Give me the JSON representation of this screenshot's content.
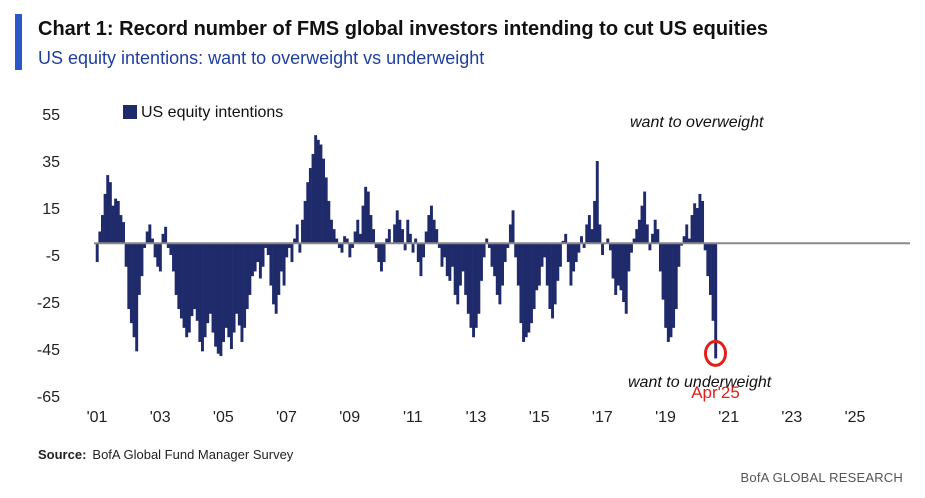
{
  "header": {
    "title": "Chart 1: Record number of FMS global investors intending to cut US equities",
    "subtitle": "US equity intentions: want to overweight vs underweight"
  },
  "footer": {
    "source_label": "Source:",
    "source_text": "BofA Global Fund Manager Survey",
    "brand": "BofA GLOBAL RESEARCH"
  },
  "colors": {
    "bars": "#1f2a6b",
    "accent": "#2a58c8",
    "highlight": "#e0201b",
    "zero_line": "#888888"
  },
  "chart_data": {
    "type": "bar",
    "title": "Chart 1: Record number of FMS global investors intending to cut US equities",
    "subtitle": "US equity intentions: want to overweight vs underweight",
    "ylim": [
      -65,
      55
    ],
    "yticks": [
      55,
      35,
      15,
      -5,
      -25,
      -45,
      -65
    ],
    "xlim": [
      2001,
      2027
    ],
    "xticks": [
      {
        "value": 2001,
        "label": "'01"
      },
      {
        "value": 2003,
        "label": "'03"
      },
      {
        "value": 2005,
        "label": "'05"
      },
      {
        "value": 2007,
        "label": "'07"
      },
      {
        "value": 2009,
        "label": "'09"
      },
      {
        "value": 2011,
        "label": "'11"
      },
      {
        "value": 2013,
        "label": "'13"
      },
      {
        "value": 2015,
        "label": "'15"
      },
      {
        "value": 2017,
        "label": "'17"
      },
      {
        "value": 2019,
        "label": "'19"
      },
      {
        "value": 2021,
        "label": "'21"
      },
      {
        "value": 2023,
        "label": "'23"
      },
      {
        "value": 2025,
        "label": "'25"
      }
    ],
    "legend": {
      "label": "US equity intentions",
      "position": "top-left"
    },
    "annotations": {
      "overweight": "want to overweight",
      "underweight": "want to underweight",
      "highlight_label": "Apr'25",
      "highlight_value": -49
    },
    "series": [
      {
        "x_start": "Jan 2001",
        "frequency": "monthly",
        "values": [
          -8,
          5,
          12,
          21,
          29,
          26,
          16,
          19,
          18,
          12,
          9,
          -10,
          -28,
          -34,
          -40,
          -46,
          -22,
          -14,
          -2,
          5,
          8,
          2,
          -6,
          -10,
          -12,
          4,
          7,
          -2,
          -5,
          -12,
          -22,
          -28,
          -32,
          -36,
          -40,
          -38,
          -31,
          -28,
          -33,
          -42,
          -46,
          -40,
          -34,
          -30,
          -38,
          -44,
          -47,
          -48,
          -42,
          -36,
          -40,
          -45,
          -38,
          -30,
          -35,
          -42,
          -36,
          -28,
          -22,
          -14,
          -12,
          -8,
          -15,
          -10,
          -2,
          -5,
          -18,
          -26,
          -30,
          -22,
          -12,
          -18,
          -6,
          -2,
          -8,
          2,
          8,
          -4,
          10,
          18,
          26,
          32,
          38,
          46,
          44,
          42,
          36,
          28,
          18,
          10,
          6,
          2,
          -2,
          -4,
          3,
          2,
          -6,
          -2,
          5,
          10,
          4,
          16,
          24,
          22,
          12,
          6,
          -2,
          -8,
          -12,
          -8,
          2,
          6,
          0,
          8,
          14,
          10,
          6,
          -3,
          10,
          4,
          -4,
          2,
          -8,
          -14,
          -6,
          5,
          12,
          16,
          10,
          6,
          -2,
          -10,
          -6,
          -14,
          -16,
          -10,
          -22,
          -26,
          -18,
          -12,
          -22,
          -30,
          -36,
          -40,
          -36,
          -30,
          -16,
          -6,
          2,
          -2,
          -10,
          -14,
          -22,
          -26,
          -18,
          -8,
          -2,
          8,
          14,
          -6,
          -18,
          -34,
          -42,
          -40,
          -38,
          -34,
          -28,
          -20,
          -18,
          -10,
          -6,
          -18,
          -28,
          -32,
          -26,
          -16,
          -10,
          1,
          4,
          -8,
          -18,
          -12,
          -8,
          -4,
          3,
          -2,
          8,
          12,
          6,
          18,
          35,
          8,
          -5,
          0,
          2,
          -3,
          -15,
          -22,
          -18,
          -20,
          -25,
          -30,
          -12,
          -4,
          2,
          6,
          10,
          16,
          22,
          8,
          -3,
          4,
          10,
          6,
          -12,
          -24,
          -36,
          -42,
          -40,
          -36,
          -28,
          -10,
          -1,
          3,
          8,
          2,
          12,
          17,
          15,
          21,
          18,
          -3,
          -14,
          -22,
          -33,
          -49
        ]
      }
    ]
  }
}
